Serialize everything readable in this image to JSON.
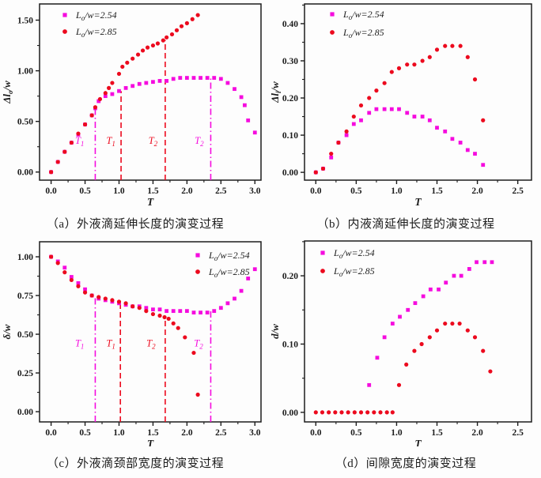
{
  "page": {
    "background": "#fdfdfd"
  },
  "colors": {
    "series_254": "#F50CDE",
    "series_285": "#EC0A1E",
    "axis": "#1c1c1c",
    "text": "#1c1c1c"
  },
  "legend_labels": {
    "series_254": "L_o/w=2.54",
    "series_285": "L_o/w=2.85"
  },
  "chart_data": [
    {
      "type": "scatter",
      "panel": "a",
      "caption": "（a）外液滴延伸长度的演变过程",
      "xlabel": "T",
      "ylabel": "Δl_o/w",
      "xlim": [
        -0.17,
        3.09
      ],
      "ylim": [
        -0.08,
        1.66
      ],
      "xticks": [
        "0.0",
        "0.5",
        "1.0",
        "1.5",
        "2.0",
        "2.5",
        "3.0"
      ],
      "yticks": [
        "0.00",
        "0.50",
        "1.00",
        "1.50"
      ],
      "xminor": 0.25,
      "yminor": 0.25,
      "grid": false,
      "legend": {
        "position": "top-left",
        "entries": [
          {
            "label": "L_o/w=2.54",
            "marker": "square",
            "color": "#F50CDE"
          },
          {
            "label": "L_o/w=2.85",
            "marker": "circle",
            "color": "#EC0A1E"
          }
        ]
      },
      "series": [
        {
          "name": "L_o/w=2.54",
          "marker": "square",
          "color": "#F50CDE",
          "x": [
            0,
            0.1,
            0.2,
            0.3,
            0.4,
            0.5,
            0.6,
            0.65,
            0.7,
            0.8,
            0.9,
            1.0,
            1.1,
            1.2,
            1.3,
            1.4,
            1.5,
            1.6,
            1.7,
            1.8,
            1.9,
            2.0,
            2.1,
            2.2,
            2.3,
            2.4,
            2.5,
            2.6,
            2.7,
            2.8,
            2.85,
            2.9,
            3.0
          ],
          "y": [
            0.0,
            0.1,
            0.2,
            0.29,
            0.37,
            0.47,
            0.56,
            0.63,
            0.7,
            0.75,
            0.77,
            0.8,
            0.83,
            0.85,
            0.87,
            0.88,
            0.89,
            0.9,
            0.9,
            0.92,
            0.93,
            0.93,
            0.93,
            0.93,
            0.93,
            0.93,
            0.92,
            0.88,
            0.82,
            0.74,
            0.66,
            0.51,
            0.39
          ]
        },
        {
          "name": "L_o/w=2.85",
          "marker": "circle",
          "color": "#EC0A1E",
          "x": [
            0,
            0.1,
            0.2,
            0.3,
            0.4,
            0.5,
            0.6,
            0.65,
            0.72,
            0.8,
            0.85,
            0.9,
            1.0,
            1.05,
            1.12,
            1.2,
            1.28,
            1.35,
            1.42,
            1.5,
            1.57,
            1.65,
            1.7,
            1.78,
            1.85,
            1.92,
            2.0,
            2.08,
            2.16
          ],
          "y": [
            0.0,
            0.1,
            0.2,
            0.29,
            0.38,
            0.47,
            0.56,
            0.64,
            0.72,
            0.78,
            0.83,
            0.88,
            0.97,
            1.04,
            1.08,
            1.12,
            1.16,
            1.2,
            1.23,
            1.25,
            1.27,
            1.3,
            1.33,
            1.36,
            1.4,
            1.44,
            1.47,
            1.51,
            1.55
          ]
        }
      ],
      "vlines": [
        {
          "x": 0.65,
          "ytop": 0.63,
          "color": "#F50CDE",
          "style": "dashdot",
          "label": "T_1",
          "label_x": 0.42,
          "label_y": 0.28
        },
        {
          "x": 1.03,
          "ytop": 0.8,
          "color": "#EC0A1E",
          "style": "dashed",
          "label": "T_1",
          "label_x": 0.88,
          "label_y": 0.28
        },
        {
          "x": 1.68,
          "ytop": 1.3,
          "color": "#EC0A1E",
          "style": "dashed",
          "label": "T_2",
          "label_x": 1.5,
          "label_y": 0.28
        },
        {
          "x": 2.35,
          "ytop": 0.93,
          "color": "#F50CDE",
          "style": "dashdot",
          "label": "T_2",
          "label_x": 2.18,
          "label_y": 0.28
        }
      ]
    },
    {
      "type": "scatter",
      "panel": "b",
      "caption": "（b）内液滴延伸长度的演变过程",
      "xlabel": "T",
      "ylabel": "Δl_i/w",
      "xlim": [
        -0.14,
        2.67
      ],
      "ylim": [
        -0.021,
        0.453
      ],
      "xticks": [
        "0.0",
        "0.5",
        "1.0",
        "1.5",
        "2.0",
        "2.5"
      ],
      "yticks": [
        "0.00",
        "0.10",
        "0.20",
        "0.30",
        "0.40"
      ],
      "xminor": 0.25,
      "yminor": 0.05,
      "grid": false,
      "legend": {
        "position": "top-left",
        "entries": [
          {
            "label": "L_o/w=2.54",
            "marker": "square",
            "color": "#F50CDE"
          },
          {
            "label": "L_o/w=2.85",
            "marker": "circle",
            "color": "#EC0A1E"
          }
        ]
      },
      "series": [
        {
          "name": "L_o/w=2.54",
          "marker": "square",
          "color": "#F50CDE",
          "x": [
            0,
            0.09,
            0.19,
            0.28,
            0.38,
            0.47,
            0.56,
            0.66,
            0.75,
            0.85,
            0.94,
            1.03,
            1.13,
            1.22,
            1.32,
            1.41,
            1.5,
            1.6,
            1.69,
            1.79,
            1.88,
            1.97,
            2.07
          ],
          "y": [
            0.0,
            0.01,
            0.04,
            0.08,
            0.1,
            0.13,
            0.14,
            0.16,
            0.17,
            0.17,
            0.17,
            0.17,
            0.16,
            0.15,
            0.15,
            0.14,
            0.12,
            0.11,
            0.09,
            0.08,
            0.06,
            0.05,
            0.02
          ]
        },
        {
          "name": "L_o/w=2.85",
          "marker": "circle",
          "color": "#EC0A1E",
          "x": [
            0,
            0.09,
            0.19,
            0.28,
            0.38,
            0.47,
            0.56,
            0.66,
            0.75,
            0.85,
            0.94,
            1.03,
            1.13,
            1.22,
            1.32,
            1.41,
            1.5,
            1.6,
            1.69,
            1.79,
            1.88,
            1.97,
            2.07
          ],
          "y": [
            0.0,
            0.01,
            0.05,
            0.08,
            0.11,
            0.15,
            0.18,
            0.2,
            0.22,
            0.24,
            0.27,
            0.28,
            0.29,
            0.29,
            0.3,
            0.31,
            0.33,
            0.34,
            0.34,
            0.34,
            0.31,
            0.25,
            0.14
          ]
        }
      ],
      "vlines": []
    },
    {
      "type": "scatter",
      "panel": "c",
      "caption": "（c）外液滴颈部宽度的演变过程",
      "xlabel": "T",
      "ylabel": "δ/w",
      "xlim": [
        -0.17,
        3.09
      ],
      "ylim": [
        -0.066,
        1.097
      ],
      "xticks": [
        "0.0",
        "0.5",
        "1.0",
        "1.5",
        "2.0",
        "2.5",
        "3.0"
      ],
      "yticks": [
        "0.00",
        "0.25",
        "0.50",
        "0.75",
        "1.00"
      ],
      "xminor": 0.25,
      "yminor": 0.125,
      "grid": false,
      "legend": {
        "position": "top-right",
        "entries": [
          {
            "label": "L_o/w=2.54",
            "marker": "square",
            "color": "#F50CDE"
          },
          {
            "label": "L_o/w=2.85",
            "marker": "circle",
            "color": "#EC0A1E"
          }
        ]
      },
      "series": [
        {
          "name": "L_o/w=2.54",
          "marker": "square",
          "color": "#F50CDE",
          "x": [
            0,
            0.1,
            0.2,
            0.3,
            0.4,
            0.5,
            0.6,
            0.7,
            0.8,
            0.9,
            1.0,
            1.1,
            1.2,
            1.3,
            1.4,
            1.5,
            1.6,
            1.7,
            1.8,
            1.9,
            2.0,
            2.1,
            2.2,
            2.3,
            2.4,
            2.5,
            2.6,
            2.7,
            2.8,
            2.9,
            3.0
          ],
          "y": [
            1.0,
            0.97,
            0.93,
            0.87,
            0.83,
            0.79,
            0.75,
            0.73,
            0.72,
            0.71,
            0.7,
            0.69,
            0.68,
            0.68,
            0.67,
            0.66,
            0.66,
            0.65,
            0.65,
            0.65,
            0.65,
            0.64,
            0.64,
            0.64,
            0.65,
            0.67,
            0.7,
            0.73,
            0.78,
            0.86,
            0.92
          ]
        },
        {
          "name": "L_o/w=2.85",
          "marker": "circle",
          "color": "#EC0A1E",
          "x": [
            0,
            0.1,
            0.2,
            0.3,
            0.4,
            0.5,
            0.6,
            0.7,
            0.8,
            0.9,
            1.0,
            1.1,
            1.2,
            1.3,
            1.4,
            1.5,
            1.6,
            1.67,
            1.73,
            1.8,
            1.87,
            1.97,
            2.1,
            2.16
          ],
          "y": [
            1.0,
            0.96,
            0.9,
            0.85,
            0.81,
            0.77,
            0.75,
            0.74,
            0.73,
            0.72,
            0.71,
            0.7,
            0.68,
            0.67,
            0.65,
            0.63,
            0.62,
            0.61,
            0.6,
            0.57,
            0.54,
            0.48,
            0.38,
            0.11
          ]
        }
      ],
      "vlines": [
        {
          "x": 0.65,
          "ytop": 0.75,
          "color": "#F50CDE",
          "style": "dashdot",
          "label": "T_1",
          "label_x": 0.42,
          "label_y": 0.42
        },
        {
          "x": 1.02,
          "ytop": 0.7,
          "color": "#EC0A1E",
          "style": "dashed",
          "label": "T_1",
          "label_x": 0.88,
          "label_y": 0.42
        },
        {
          "x": 1.68,
          "ytop": 0.615,
          "color": "#EC0A1E",
          "style": "dashed",
          "label": "T_2",
          "label_x": 1.47,
          "label_y": 0.42
        },
        {
          "x": 2.35,
          "ytop": 0.655,
          "color": "#F50CDE",
          "style": "dashdot",
          "label": "T_2",
          "label_x": 2.17,
          "label_y": 0.42
        }
      ]
    },
    {
      "type": "scatter",
      "panel": "d",
      "caption": "（d）间隙宽度的演变过程",
      "xlabel": "T",
      "ylabel": "d/w",
      "xlim": [
        -0.14,
        2.67
      ],
      "ylim": [
        -0.014,
        0.251
      ],
      "xticks": [
        "0.0",
        "0.5",
        "1.0",
        "1.5",
        "2.0",
        "2.5"
      ],
      "yticks": [
        "0.00",
        "0.10",
        "0.20"
      ],
      "xminor": 0.25,
      "yminor": 0.05,
      "grid": false,
      "legend": {
        "position": "top-left",
        "entries": [
          {
            "label": "L_o/w=2.54",
            "marker": "square",
            "color": "#F50CDE"
          },
          {
            "label": "L_o/w=2.85",
            "marker": "circle",
            "color": "#EC0A1E"
          }
        ]
      },
      "series": [
        {
          "name": "L_o/w=2.54",
          "marker": "square",
          "color": "#F50CDE",
          "x": [
            0.66,
            0.76,
            0.85,
            0.95,
            1.04,
            1.14,
            1.23,
            1.33,
            1.42,
            1.52,
            1.61,
            1.71,
            1.8,
            1.9,
            1.99,
            2.09,
            2.18
          ],
          "y": [
            0.04,
            0.08,
            0.11,
            0.13,
            0.14,
            0.15,
            0.16,
            0.17,
            0.18,
            0.18,
            0.19,
            0.2,
            0.2,
            0.21,
            0.22,
            0.22,
            0.22
          ]
        },
        {
          "name": "L_o/w=2.85",
          "marker": "circle",
          "color": "#EC0A1E",
          "x": [
            0,
            0.08,
            0.16,
            0.24,
            0.32,
            0.4,
            0.48,
            0.56,
            0.64,
            0.72,
            0.8,
            0.88,
            0.95,
            1.03,
            1.12,
            1.22,
            1.31,
            1.41,
            1.5,
            1.6,
            1.69,
            1.78,
            1.88,
            1.97,
            2.07,
            2.16
          ],
          "y": [
            0,
            0,
            0,
            0,
            0,
            0,
            0,
            0,
            0,
            0,
            0,
            0,
            0,
            0.04,
            0.07,
            0.09,
            0.1,
            0.11,
            0.12,
            0.13,
            0.13,
            0.13,
            0.12,
            0.11,
            0.09,
            0.06
          ]
        }
      ],
      "vlines": []
    }
  ]
}
